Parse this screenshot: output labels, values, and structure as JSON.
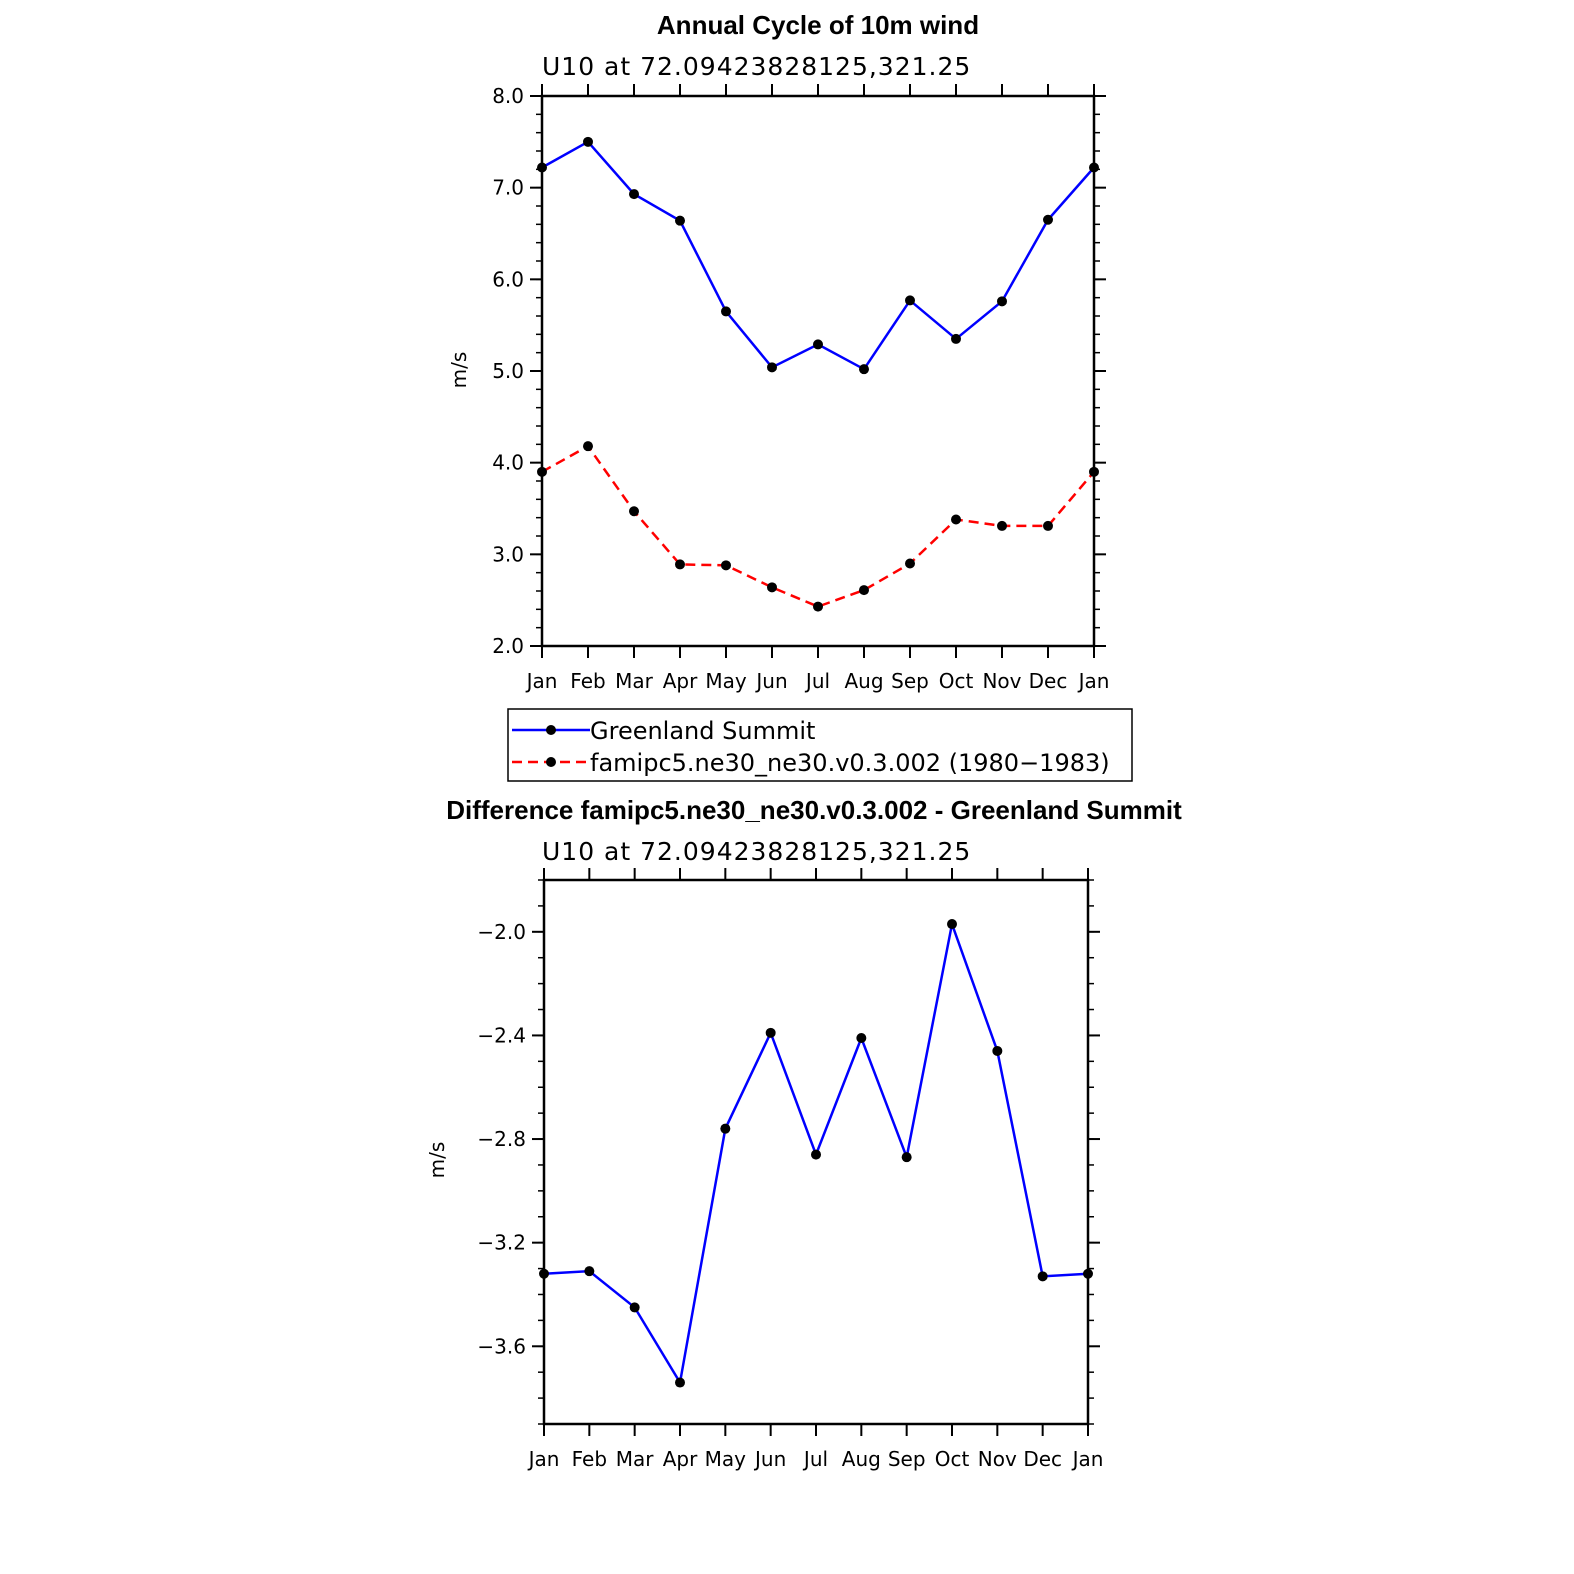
{
  "chart_data": [
    {
      "type": "line",
      "title": "Annual Cycle of 10m wind",
      "subtitle": "U10  at  72.09423828125,321.25",
      "xlabel": "",
      "ylabel": "m/s",
      "categories": [
        "Jan",
        "Feb",
        "Mar",
        "Apr",
        "May",
        "Jun",
        "Jul",
        "Aug",
        "Sep",
        "Oct",
        "Nov",
        "Dec",
        "Jan"
      ],
      "ylim": [
        2.0,
        8.0
      ],
      "yticks": [
        "2.0",
        "3.0",
        "4.0",
        "5.0",
        "6.0",
        "7.0",
        "8.0"
      ],
      "grid": false,
      "legend": "below",
      "series": [
        {
          "name": "Greenland Summit",
          "color": "#0000ff",
          "dash": "solid",
          "values": [
            7.22,
            7.5,
            6.93,
            6.64,
            5.65,
            5.04,
            5.29,
            5.02,
            5.77,
            5.35,
            5.76,
            6.65,
            7.22
          ]
        },
        {
          "name": "famipc5.ne30_ne30.v0.3.002 (1980−1983)",
          "color": "#ff0000",
          "dash": "dashed",
          "values": [
            3.9,
            4.18,
            3.47,
            2.89,
            2.88,
            2.64,
            2.43,
            2.61,
            2.9,
            3.38,
            3.31,
            3.31,
            3.9
          ]
        }
      ]
    },
    {
      "type": "line",
      "title": "Difference famipc5.ne30_ne30.v0.3.002 - Greenland Summit",
      "subtitle": "U10  at  72.09423828125,321.25",
      "xlabel": "",
      "ylabel": "m/s",
      "categories": [
        "Jan",
        "Feb",
        "Mar",
        "Apr",
        "May",
        "Jun",
        "Jul",
        "Aug",
        "Sep",
        "Oct",
        "Nov",
        "Dec",
        "Jan"
      ],
      "ylim": [
        -3.9,
        -1.8
      ],
      "yticks": [
        "−2.0",
        "−2.4",
        "−2.8",
        "−3.2",
        "−3.6"
      ],
      "ytick_values": [
        -2.0,
        -2.4,
        -2.8,
        -3.2,
        -3.6
      ],
      "grid": false,
      "series": [
        {
          "color": "#0000ff",
          "dash": "solid",
          "values": [
            -3.32,
            -3.31,
            -3.45,
            -3.74,
            -2.76,
            -2.39,
            -2.86,
            -2.41,
            -2.87,
            -1.97,
            -2.46,
            -3.33,
            -3.32
          ]
        }
      ]
    }
  ]
}
